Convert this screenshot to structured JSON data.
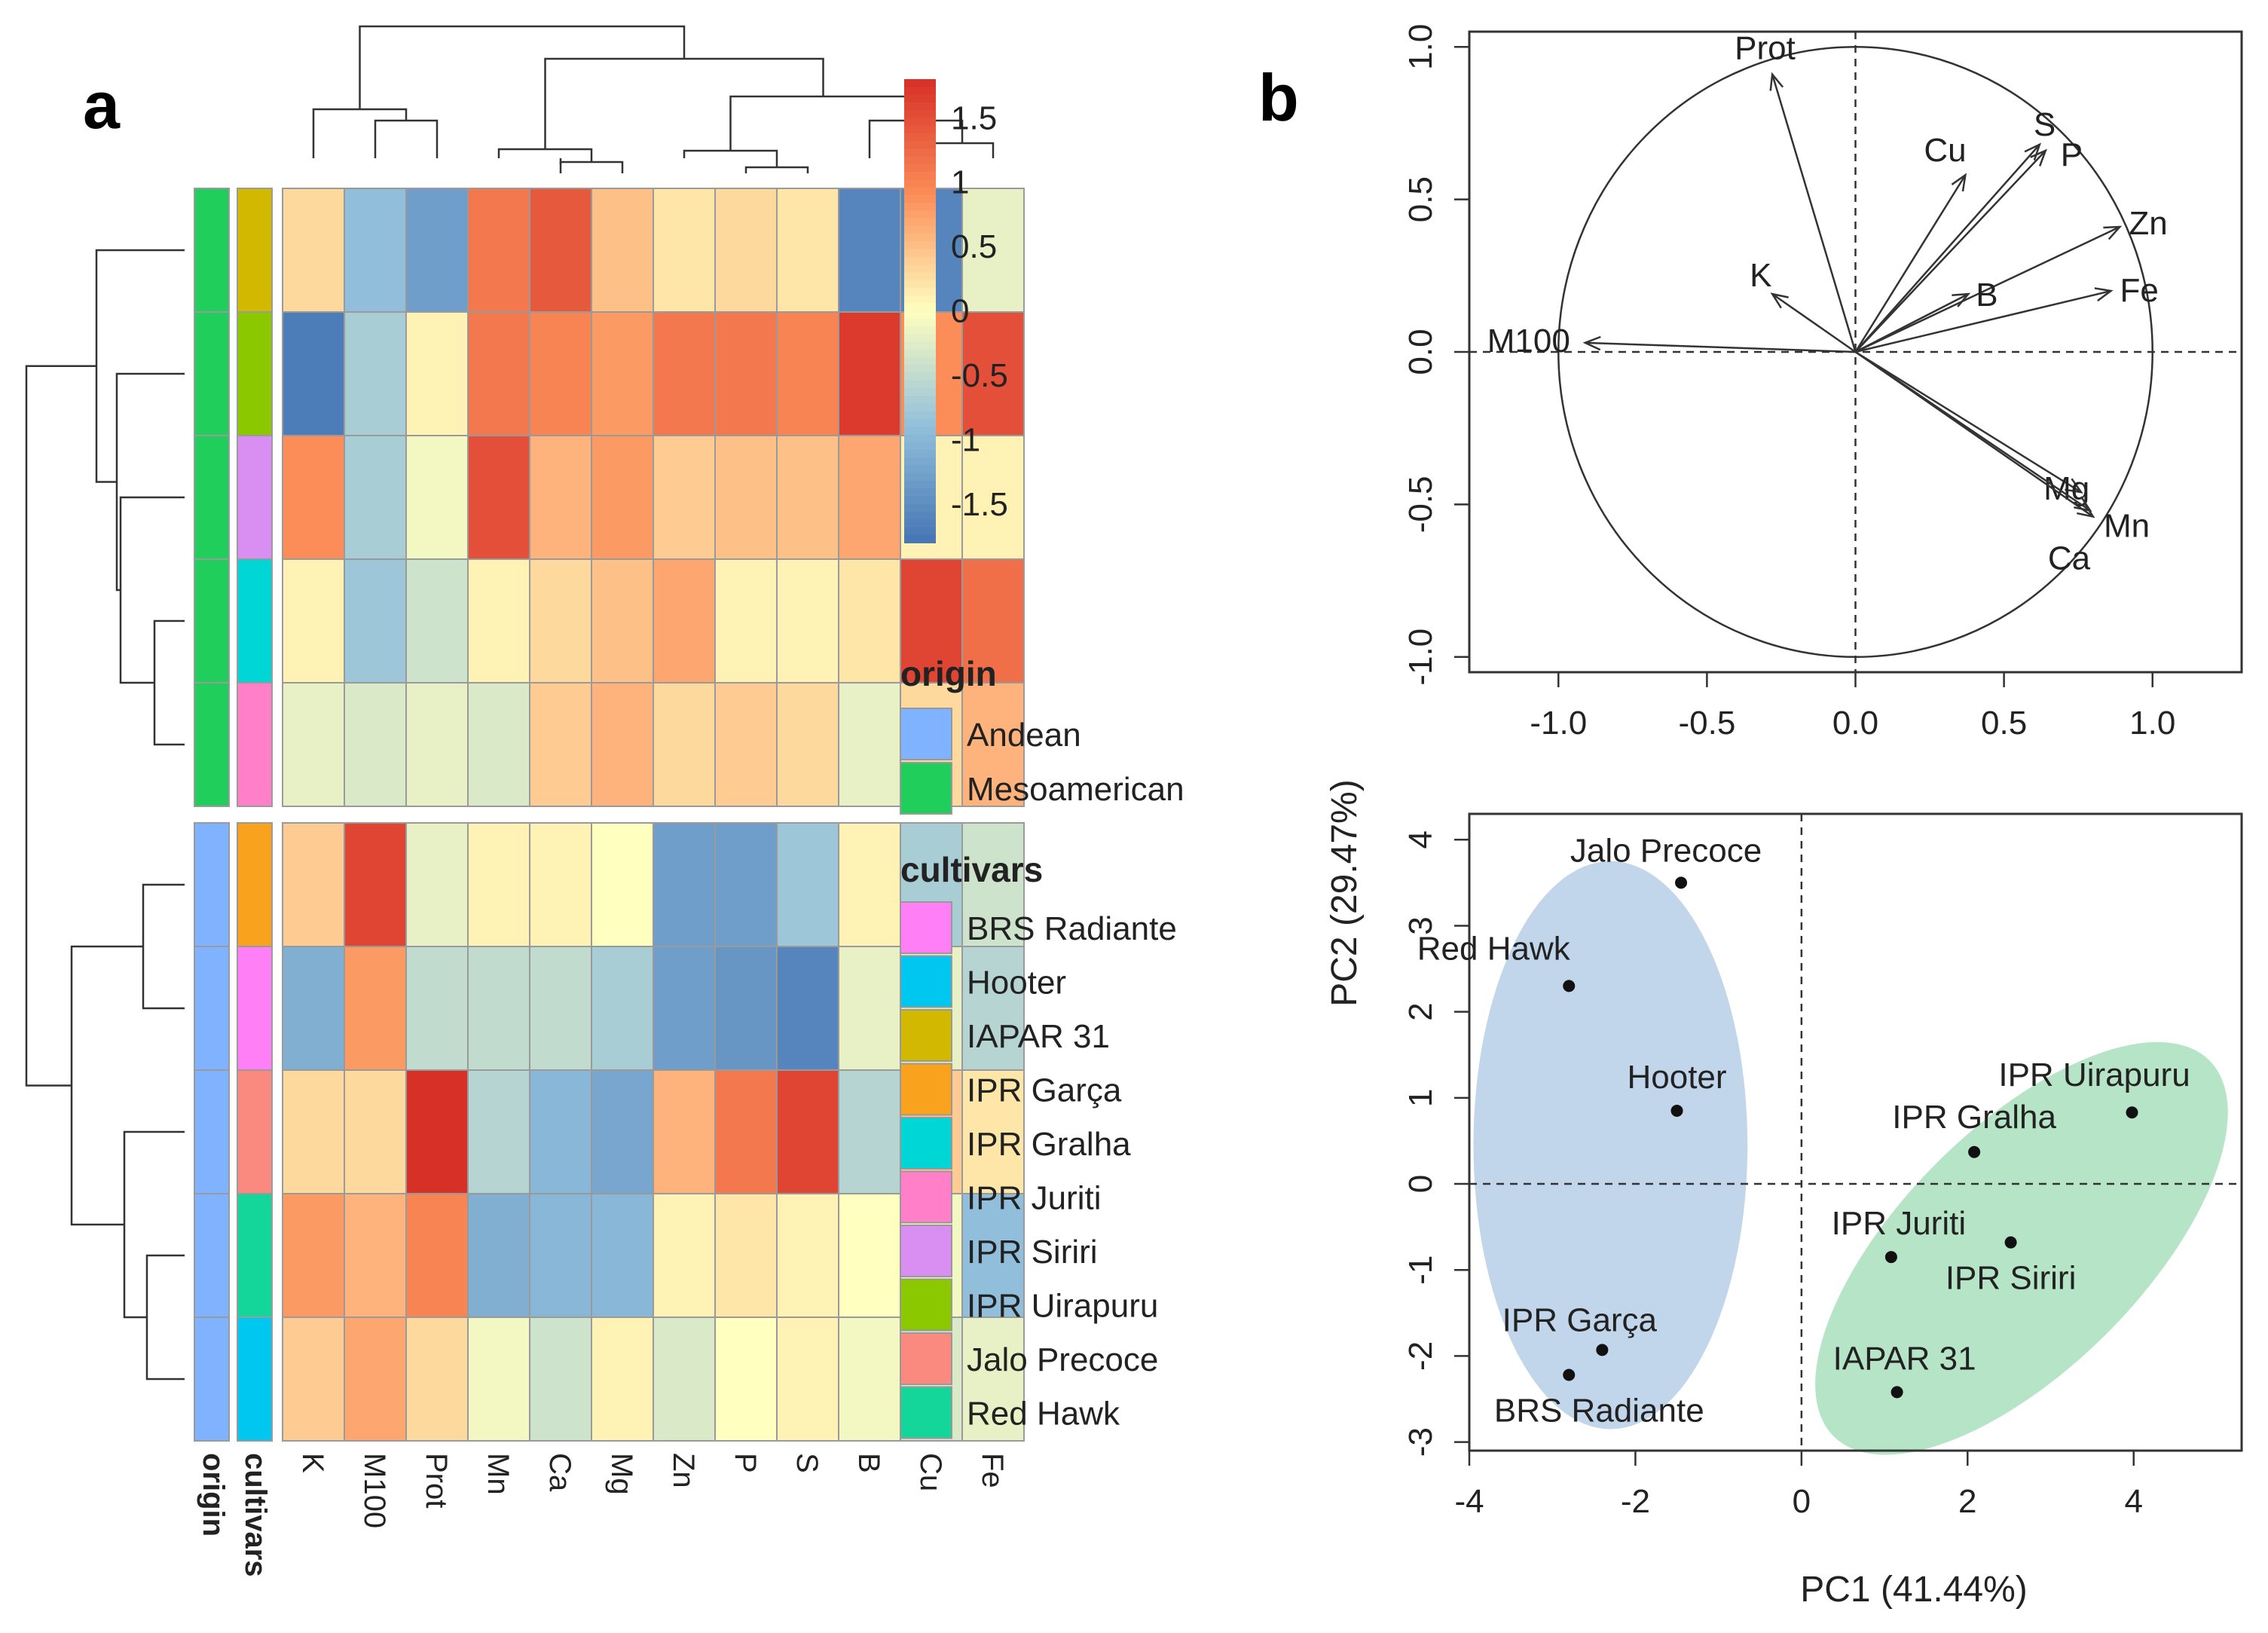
{
  "panels": {
    "a": "a",
    "b": "b"
  },
  "chart_data": [
    {
      "type": "heatmap",
      "columns": [
        "K",
        "M100",
        "Prot",
        "Mn",
        "Ca",
        "Mg",
        "Zn",
        "P",
        "S",
        "B",
        "Cu",
        "Fe"
      ],
      "row_groups": [
        {
          "name": "Mesoamerican",
          "rows": [
            "IAPAR 31",
            "IPR Uirapuru",
            "IPR Siriri",
            "IPR Gralha",
            "IPR Juriti"
          ]
        },
        {
          "name": "Andean",
          "rows": [
            "IPR Garça",
            "BRS Radiante",
            "Jalo Precoce",
            "Red Hawk",
            "Hooter"
          ]
        }
      ],
      "rows": [
        "IAPAR 31",
        "IPR Uirapuru",
        "IPR Siriri",
        "IPR Gralha",
        "IPR Juriti",
        "IPR Garça",
        "BRS Radiante",
        "Jalo Precoce",
        "Red Hawk",
        "Hooter"
      ],
      "row_origin": [
        "Mesoamerican",
        "Mesoamerican",
        "Mesoamerican",
        "Mesoamerican",
        "Mesoamerican",
        "Andean",
        "Andean",
        "Andean",
        "Andean",
        "Andean"
      ],
      "values": [
        [
          0.3,
          -0.9,
          -1.3,
          1.1,
          1.4,
          0.5,
          0.2,
          0.3,
          0.2,
          -1.6,
          -1.6,
          -0.2
        ],
        [
          -1.7,
          -0.7,
          0.1,
          1.1,
          1.0,
          0.8,
          1.1,
          1.1,
          1.0,
          1.7,
          0.9,
          1.5
        ],
        [
          0.9,
          -0.7,
          -0.1,
          1.5,
          0.6,
          0.8,
          0.4,
          0.5,
          0.5,
          0.7,
          0.1,
          0.1
        ],
        [
          0.1,
          -0.8,
          -0.4,
          0.1,
          0.3,
          0.5,
          0.7,
          0.1,
          0.1,
          0.2,
          1.6,
          1.2
        ],
        [
          -0.2,
          -0.3,
          -0.2,
          -0.3,
          0.4,
          0.6,
          0.3,
          0.4,
          0.3,
          -0.2,
          0.3,
          0.6
        ],
        [
          0.4,
          1.6,
          -0.2,
          0.1,
          0.1,
          0.0,
          -1.3,
          -1.3,
          -0.8,
          0.1,
          -0.7,
          -0.4
        ],
        [
          -1.1,
          0.8,
          -0.5,
          -0.5,
          -0.5,
          -0.7,
          -1.3,
          -1.4,
          -1.6,
          -0.2,
          -0.2,
          -0.6
        ],
        [
          0.3,
          0.3,
          1.8,
          -0.6,
          -1.0,
          -1.2,
          0.6,
          1.1,
          1.6,
          -0.6,
          0.4,
          0.2
        ],
        [
          0.8,
          0.6,
          1.0,
          -1.1,
          -1.0,
          -1.0,
          0.1,
          0.2,
          0.1,
          0.0,
          -0.1,
          -0.9
        ],
        [
          0.4,
          0.7,
          0.3,
          -0.1,
          -0.4,
          0.1,
          -0.3,
          0.0,
          0.1,
          -0.1,
          -0.3,
          -0.2
        ]
      ],
      "color_scale": {
        "min": -1.8,
        "max": 1.8,
        "ticks": [
          "1.5",
          "1",
          "0.5",
          "0",
          "-0.5",
          "-1",
          "-1.5"
        ],
        "tick_values": [
          1.5,
          1,
          0.5,
          0,
          -0.5,
          -1,
          -1.5
        ]
      },
      "annotation_labels": {
        "origin": "origin",
        "cultivars": "cultivars"
      },
      "legend": {
        "origin_title": "origin",
        "origin": [
          {
            "name": "Andean",
            "color": "#7fb2ff"
          },
          {
            "name": "Mesoamerican",
            "color": "#1fce5b"
          }
        ],
        "cultivars_title": "cultivars",
        "cultivars": [
          {
            "name": "BRS Radiante",
            "color": "#ff7ff7"
          },
          {
            "name": "Hooter",
            "color": "#00c7ef"
          },
          {
            "name": "IAPAR 31",
            "color": "#d3b800"
          },
          {
            "name": "IPR Garça",
            "color": "#f8a21d"
          },
          {
            "name": "IPR Gralha",
            "color": "#00d6d6"
          },
          {
            "name": "IPR Juriti",
            "color": "#ff7fc9"
          },
          {
            "name": "IPR Siriri",
            "color": "#d88ff1"
          },
          {
            "name": "IPR Uirapuru",
            "color": "#8bc800"
          },
          {
            "name": "Jalo Precoce",
            "color": "#fa8a7f"
          },
          {
            "name": "Red Hawk",
            "color": "#14d69a"
          }
        ]
      }
    },
    {
      "type": "scatter",
      "subtype": "pca-correlation-circle",
      "xlim": [
        -1.3,
        1.3
      ],
      "ylim": [
        -1.05,
        1.05
      ],
      "xticks": [
        "-1.0",
        "-0.5",
        "0.0",
        "0.5",
        "1.0"
      ],
      "yticks": [
        "-1.0",
        "-0.5",
        "0.0",
        "0.5",
        "1.0"
      ],
      "xtick_values": [
        -1,
        -0.5,
        0,
        0.5,
        1
      ],
      "ytick_values": [
        -1,
        -0.5,
        0,
        0.5,
        1
      ],
      "arrows": [
        {
          "label": "Prot",
          "x": -0.28,
          "y": 0.91
        },
        {
          "label": "S",
          "x": 0.62,
          "y": 0.68
        },
        {
          "label": "P",
          "x": 0.64,
          "y": 0.66
        },
        {
          "label": "Cu",
          "x": 0.37,
          "y": 0.58
        },
        {
          "label": "Zn",
          "x": 0.89,
          "y": 0.41
        },
        {
          "label": "Fe",
          "x": 0.86,
          "y": 0.2
        },
        {
          "label": "B",
          "x": 0.38,
          "y": 0.19
        },
        {
          "label": "K",
          "x": -0.28,
          "y": 0.19
        },
        {
          "label": "M100",
          "x": -0.91,
          "y": 0.03
        },
        {
          "label": "Mg",
          "x": 0.76,
          "y": -0.46
        },
        {
          "label": "Mn",
          "x": 0.79,
          "y": -0.52
        },
        {
          "label": "Ca",
          "x": 0.8,
          "y": -0.54
        }
      ]
    },
    {
      "type": "scatter",
      "subtype": "pca-scores",
      "xlim": [
        -4.0,
        5.3
      ],
      "ylim": [
        -3.1,
        4.3
      ],
      "xticks": [
        "-4",
        "-2",
        "0",
        "2",
        "4"
      ],
      "yticks": [
        "4",
        "3",
        "2",
        "1",
        "0",
        "-1",
        "-2",
        "-3"
      ],
      "xtick_values": [
        -4,
        -2,
        0,
        2,
        4
      ],
      "ytick_values": [
        4,
        3,
        2,
        1,
        0,
        -1,
        -2,
        -3
      ],
      "xlabel": "PC1 (41.44%)",
      "ylabel": "PC2 (29.47%)",
      "points": [
        {
          "label": "Jalo Precoce",
          "x": -1.45,
          "y": 3.5,
          "group": "Andean"
        },
        {
          "label": "Red Hawk",
          "x": -2.8,
          "y": 2.3,
          "group": "Andean"
        },
        {
          "label": "Hooter",
          "x": -1.5,
          "y": 0.85,
          "group": "Andean"
        },
        {
          "label": "IPR Garça",
          "x": -2.4,
          "y": -1.93,
          "group": "Andean"
        },
        {
          "label": "BRS Radiante",
          "x": -2.8,
          "y": -2.22,
          "group": "Andean"
        },
        {
          "label": "IPR Uirapuru",
          "x": 3.98,
          "y": 0.83,
          "group": "Mesoamerican"
        },
        {
          "label": "IPR Gralha",
          "x": 2.08,
          "y": 0.37,
          "group": "Mesoamerican"
        },
        {
          "label": "IPR Juriti",
          "x": 1.08,
          "y": -0.85,
          "group": "Mesoamerican"
        },
        {
          "label": "IPR Siriri",
          "x": 2.52,
          "y": -0.68,
          "group": "Mesoamerican"
        },
        {
          "label": "IAPAR 31",
          "x": 1.15,
          "y": -2.42,
          "group": "Mesoamerican"
        }
      ],
      "ellipses": [
        {
          "group": "Andean",
          "color": "#b7cfe8",
          "cx": -2.3,
          "cy": 0.45,
          "rx": 1.65,
          "ry": 3.3,
          "angle": 0
        },
        {
          "group": "Mesoamerican",
          "color": "#a8dfbd",
          "cx": 2.65,
          "cy": -0.75,
          "rx": 3.2,
          "ry": 1.4,
          "angle": -45
        }
      ]
    }
  ]
}
